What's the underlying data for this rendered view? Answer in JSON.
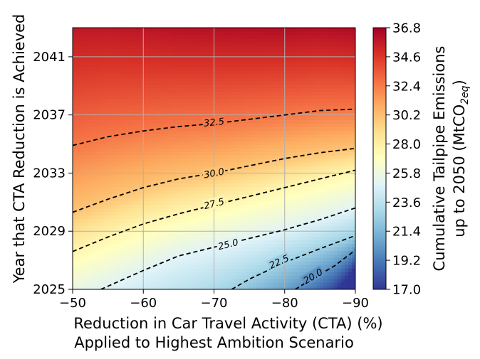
{
  "chart_data": {
    "type": "heatmap",
    "subtype": "filled-contour",
    "xlabel_lines": [
      "Reduction in Car Travel Activity (CTA) (%)",
      "Applied to Highest Ambition Scenario"
    ],
    "ylabel": "Year that CTA Reduction is Achieved",
    "colorbar_label_line1": "Cumulative Tailpipe Emissions",
    "colorbar_label_line2_prefix": "up to 2050 (MtCO",
    "colorbar_label_line2_sub": "2eq",
    "colorbar_label_line2_suffix": ")",
    "xlim": [
      -50,
      -90
    ],
    "ylim": [
      2025,
      2043
    ],
    "x_ticks": [
      {
        "value": -50,
        "label": "−50"
      },
      {
        "value": -60,
        "label": "−60"
      },
      {
        "value": -70,
        "label": "−70"
      },
      {
        "value": -80,
        "label": "−80"
      },
      {
        "value": -90,
        "label": "−90"
      }
    ],
    "y_ticks": [
      {
        "value": 2025,
        "label": "2025"
      },
      {
        "value": 2029,
        "label": "2029"
      },
      {
        "value": 2033,
        "label": "2033"
      },
      {
        "value": 2037,
        "label": "2037"
      },
      {
        "value": 2041,
        "label": "2041"
      }
    ],
    "colorbar_range": [
      17.0,
      36.8
    ],
    "colorbar_ticks": [
      "17.0",
      "19.2",
      "21.4",
      "23.6",
      "25.8",
      "28.0",
      "30.2",
      "32.4",
      "34.6",
      "36.8"
    ],
    "colormap": "RdYlBu_r",
    "colormap_stops": [
      "#313695",
      "#4575b4",
      "#74add1",
      "#abd9e9",
      "#e0f3f8",
      "#ffffbf",
      "#fee090",
      "#fdae61",
      "#f46d43",
      "#d73027",
      "#a50026"
    ],
    "grid": true,
    "contours": [
      {
        "level": 20.0,
        "label": "20.0",
        "label_at": [
          -84,
          2025.9
        ],
        "points": [
          [
            -81.5,
            2025.0
          ],
          [
            -84,
            2025.75
          ],
          [
            -87,
            2026.6
          ],
          [
            -90,
            2027.7
          ]
        ]
      },
      {
        "level": 22.5,
        "label": "22.5",
        "label_at": [
          -79.2,
          2026.9
        ],
        "points": [
          [
            -72.5,
            2025.0
          ],
          [
            -75,
            2025.7
          ],
          [
            -80,
            2026.85
          ],
          [
            -85,
            2027.8
          ],
          [
            -90,
            2028.7
          ]
        ]
      },
      {
        "level": 25.0,
        "label": "25.0",
        "label_at": [
          -72,
          2028.1
        ],
        "points": [
          [
            -54,
            2025.0
          ],
          [
            -60,
            2026.3
          ],
          [
            -65,
            2027.3
          ],
          [
            -70,
            2027.9
          ],
          [
            -75,
            2028.5
          ],
          [
            -80,
            2029.1
          ],
          [
            -85,
            2029.8
          ],
          [
            -90,
            2030.6
          ]
        ]
      },
      {
        "level": 27.5,
        "label": "27.5",
        "label_at": [
          -70,
          2030.9
        ],
        "points": [
          [
            -50,
            2027.6
          ],
          [
            -55,
            2028.6
          ],
          [
            -60,
            2029.5
          ],
          [
            -65,
            2030.2
          ],
          [
            -70,
            2030.8
          ],
          [
            -75,
            2031.4
          ],
          [
            -80,
            2032.0
          ],
          [
            -85,
            2032.6
          ],
          [
            -90,
            2033.2
          ]
        ]
      },
      {
        "level": 30.0,
        "label": "30.0",
        "label_at": [
          -70,
          2033.0
        ],
        "points": [
          [
            -50,
            2030.3
          ],
          [
            -55,
            2031.2
          ],
          [
            -60,
            2032.0
          ],
          [
            -65,
            2032.6
          ],
          [
            -70,
            2033.0
          ],
          [
            -75,
            2033.5
          ],
          [
            -80,
            2034.0
          ],
          [
            -85,
            2034.4
          ],
          [
            -90,
            2034.7
          ]
        ]
      },
      {
        "level": 32.5,
        "label": "32.5",
        "label_at": [
          -70,
          2036.5
        ],
        "points": [
          [
            -50,
            2034.9
          ],
          [
            -55,
            2035.5
          ],
          [
            -60,
            2035.9
          ],
          [
            -65,
            2036.2
          ],
          [
            -70,
            2036.4
          ],
          [
            -75,
            2036.7
          ],
          [
            -80,
            2037.0
          ],
          [
            -85,
            2037.3
          ],
          [
            -90,
            2037.4
          ]
        ]
      }
    ]
  }
}
